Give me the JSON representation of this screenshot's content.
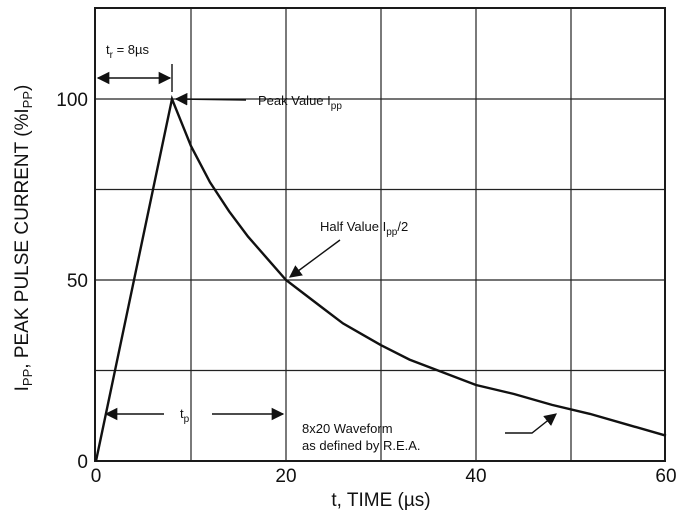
{
  "chart_data": {
    "type": "line",
    "title": "",
    "xlabel": "t, TIME (µs)",
    "ylabel": "IPP, PEAK PULSE CURRENT (%IPP)",
    "ylabel_parts": {
      "pre": "I",
      "sub1": "PP",
      "mid": ", PEAK PULSE CURRENT (%I",
      "sub2": "PP",
      "post": ")"
    },
    "xlim": [
      0,
      60
    ],
    "ylim": [
      0,
      125
    ],
    "x_ticks": [
      0,
      20,
      40,
      60
    ],
    "y_ticks": [
      0,
      50,
      100
    ],
    "x_gridlines": [
      10,
      20,
      30,
      40,
      50
    ],
    "y_gridlines": [
      25,
      50,
      75,
      100
    ],
    "grid": true,
    "series": [
      {
        "x": [
          0,
          8,
          10,
          12,
          14,
          16,
          18,
          20,
          22,
          24,
          26,
          28,
          30,
          33,
          36,
          40,
          44,
          48,
          52,
          56,
          60
        ],
        "y": [
          0,
          100,
          87,
          77,
          69,
          62,
          56,
          50,
          46,
          42,
          38,
          35,
          32,
          28,
          25,
          21,
          18.5,
          15.5,
          13,
          10,
          7
        ]
      }
    ],
    "annotations": {
      "rise_time": {
        "pre": "t",
        "sub": "r",
        "post": " = 8µs"
      },
      "peak": {
        "pre": "Peak Value I",
        "sub": "pp",
        "post": ""
      },
      "half": {
        "pre": "Half Value I",
        "sub": "pp",
        "post": "/2"
      },
      "tp": {
        "pre": "t",
        "sub": "p"
      },
      "waveform_line1": "8x20 Waveform",
      "waveform_line2": "as defined by R.E.A."
    }
  }
}
